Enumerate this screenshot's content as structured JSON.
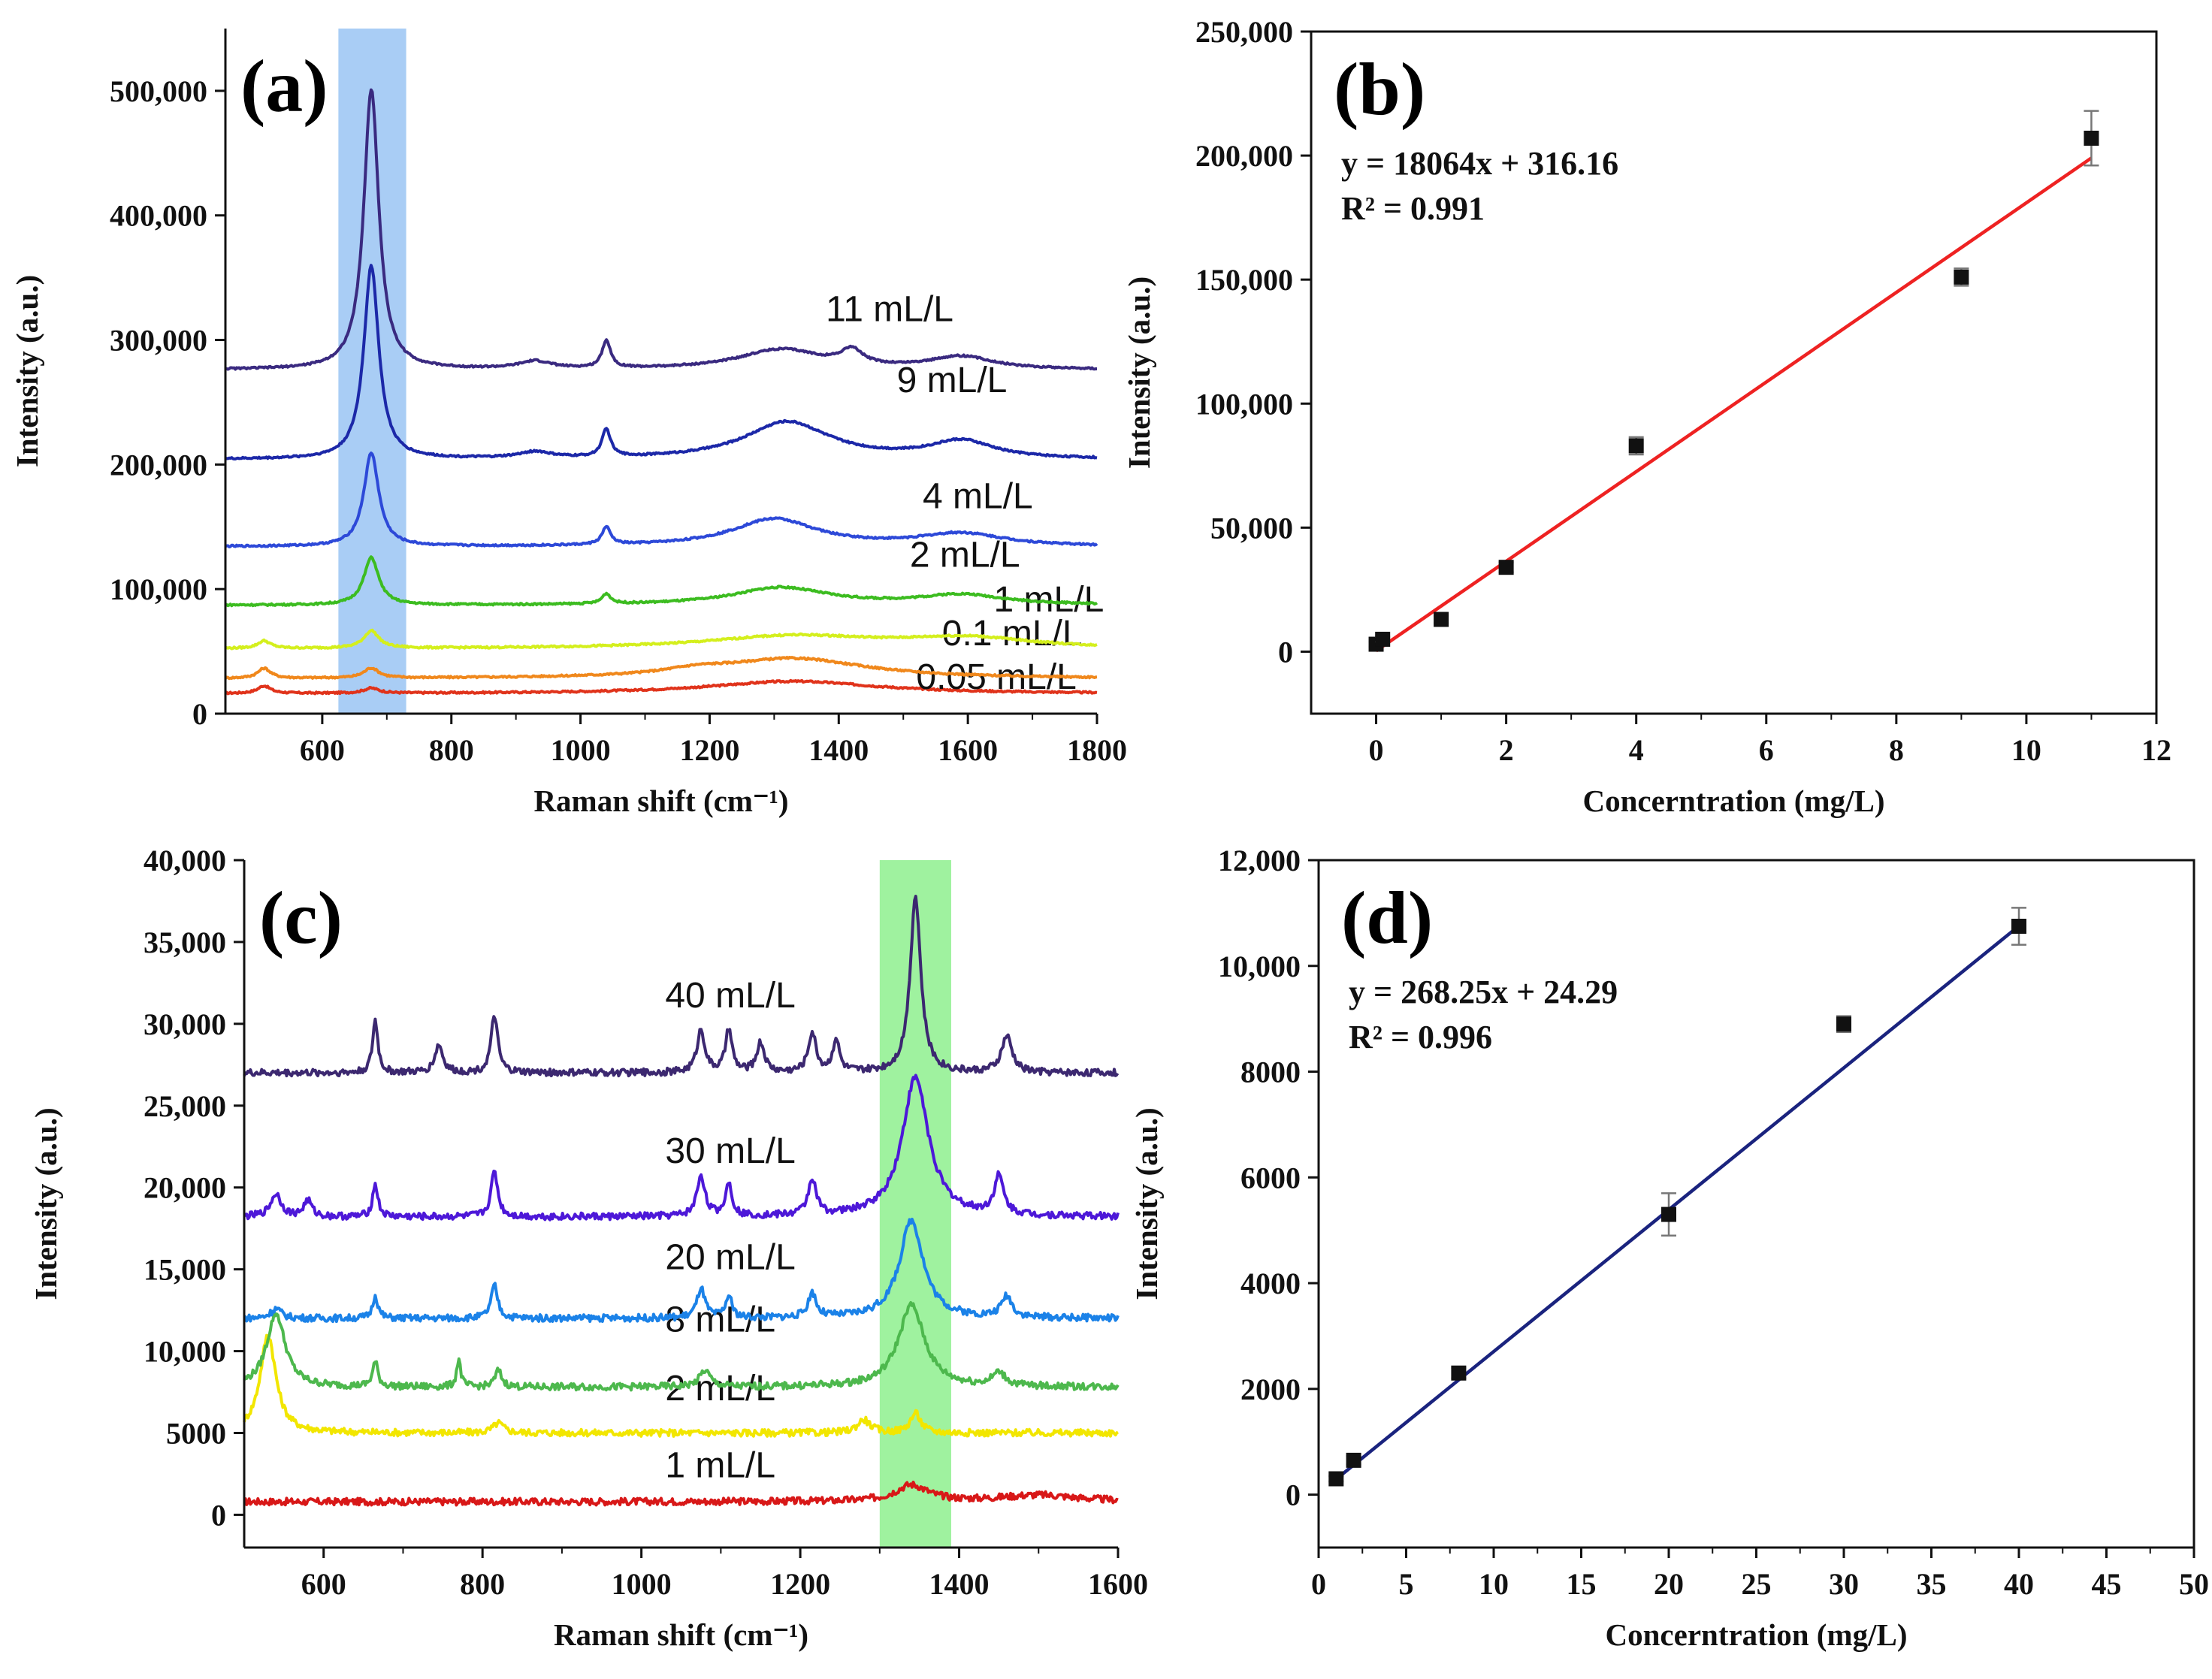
{
  "chart_data": [
    {
      "id": "a",
      "type": "line",
      "panel_label": "(a)",
      "xlabel": "Raman shift (cm⁻¹)",
      "ylabel": "Intensity (a.u.)",
      "xlim": [
        450,
        1800
      ],
      "ylim": [
        0,
        550000
      ],
      "xticks": [
        600,
        800,
        1000,
        1200,
        1400,
        1600,
        1800
      ],
      "xtick_labels": [
        "600",
        "800",
        "1000",
        "1200",
        "1400",
        "1600",
        "1800"
      ],
      "yticks": [
        0,
        100000,
        200000,
        300000,
        400000,
        500000
      ],
      "ytick_labels": [
        "0",
        "100,000",
        "200,000",
        "300,000",
        "400,000",
        "500,000"
      ],
      "highlight": {
        "from": 625,
        "to": 730,
        "color": "#a9cdf5"
      },
      "series": [
        {
          "name": "0.05 mL/L",
          "label": "0.05 mL/L",
          "color": "#e0331b",
          "baseline": 16000,
          "peaks": [
            [
              510,
              6000,
              12
            ],
            [
              676,
              4000,
              14
            ],
            [
              1330,
              10000,
              160
            ]
          ],
          "label_x": 1520,
          "label_y": 20000
        },
        {
          "name": "0.1 mL/L",
          "label": "0.1 mL/L",
          "color": "#f0881c",
          "baseline": 28000,
          "peaks": [
            [
              510,
              8000,
              12
            ],
            [
              676,
              8000,
              14
            ],
            [
              1180,
              4000,
              60
            ],
            [
              1330,
              16000,
              140
            ]
          ],
          "label_x": 1560,
          "label_y": 55000
        },
        {
          "name": "1 mL/L",
          "label": "1 mL/L",
          "color": "#d4ef1d",
          "baseline": 52000,
          "peaks": [
            [
              510,
              6000,
              12
            ],
            [
              676,
              14000,
              14
            ],
            [
              1330,
              10000,
              160
            ],
            [
              1600,
              8000,
              120
            ]
          ],
          "label_x": 1640,
          "label_y": 82000
        },
        {
          "name": "2 mL/L",
          "label": "2 mL/L",
          "color": "#3cbc20",
          "baseline": 87000,
          "peaks": [
            [
              676,
              38000,
              14
            ],
            [
              1040,
              8000,
              8
            ],
            [
              1310,
              14000,
              90
            ],
            [
              1590,
              8000,
              80
            ]
          ],
          "label_x": 1510,
          "label_y": 118000
        },
        {
          "name": "4 mL/L",
          "label": "4 mL/L",
          "color": "#2d49d8",
          "baseline": 134000,
          "peaks": [
            [
              676,
              75000,
              14
            ],
            [
              1040,
              14000,
              8
            ],
            [
              1300,
              22000,
              80
            ],
            [
              1590,
              10000,
              80
            ]
          ],
          "label_x": 1530,
          "label_y": 165000
        },
        {
          "name": "9 mL/L",
          "label": "9 mL/L",
          "color": "#1c28a8",
          "baseline": 204000,
          "peaks": [
            [
              676,
              155000,
              14
            ],
            [
              930,
              5000,
              30
            ],
            [
              1040,
              22000,
              8
            ],
            [
              1320,
              30000,
              80
            ],
            [
              1590,
              14000,
              60
            ]
          ],
          "label_x": 1490,
          "label_y": 258000
        },
        {
          "name": "11 mL/L",
          "label": "11 mL/L",
          "color": "#3a2a80",
          "baseline": 276000,
          "peaks": [
            [
              676,
              225000,
              14
            ],
            [
              930,
              6000,
              30
            ],
            [
              1040,
              22000,
              8
            ],
            [
              1310,
              16000,
              80
            ],
            [
              1420,
              12000,
              20
            ],
            [
              1590,
              10000,
              60
            ]
          ],
          "label_x": 1380,
          "label_y": 315000
        }
      ]
    },
    {
      "id": "b",
      "type": "scatter",
      "panel_label": "(b)",
      "xlabel": "Concerntration (mg/L)",
      "ylabel": "Intensity (a.u.)",
      "xlim": [
        -1,
        12
      ],
      "ylim": [
        -25000,
        250000
      ],
      "xticks": [
        0,
        2,
        4,
        6,
        8,
        10,
        12
      ],
      "xtick_labels": [
        "0",
        "2",
        "4",
        "6",
        "8",
        "10",
        "12"
      ],
      "yticks": [
        0,
        50000,
        100000,
        150000,
        200000,
        250000
      ],
      "ytick_labels": [
        "0",
        "50,000",
        "100,000",
        "150,000",
        "200,000",
        "250,000"
      ],
      "x": [
        0,
        0.1,
        1,
        2,
        4,
        9,
        11
      ],
      "y": [
        3000,
        5000,
        13000,
        34000,
        83000,
        151000,
        207000
      ],
      "err": [
        1000,
        1000,
        1500,
        2000,
        3500,
        3500,
        11000
      ],
      "fit": {
        "slope": 18064,
        "intercept": 316.16,
        "x_range": [
          0,
          11
        ],
        "color": "#ee2222"
      },
      "equation": "y = 18064x + 316.16",
      "r2": "R² = 0.991"
    },
    {
      "id": "c",
      "type": "line",
      "panel_label": "(c)",
      "xlabel": "Raman shift (cm⁻¹)",
      "ylabel": "Intensity (a.u.)",
      "xlim": [
        500,
        1600
      ],
      "ylim": [
        -2000,
        40000
      ],
      "xticks": [
        600,
        800,
        1000,
        1200,
        1400,
        1600
      ],
      "xtick_labels": [
        "600",
        "800",
        "1000",
        "1200",
        "1400",
        "1600"
      ],
      "yticks": [
        0,
        5000,
        10000,
        15000,
        20000,
        25000,
        30000,
        35000,
        40000
      ],
      "ytick_labels": [
        "0",
        "5000",
        "10,000",
        "15,000",
        "20,000",
        "25,000",
        "30,000",
        "35,000",
        "40,000"
      ],
      "highlight": {
        "from": 1300,
        "to": 1390,
        "color": "#9ff29f"
      },
      "series": [
        {
          "name": "1 mL/L",
          "label": "1 mL/L",
          "color": "#d81818",
          "baseline": 800,
          "peaks": [
            [
              1340,
              1000,
              25
            ],
            [
              1500,
              400,
              60
            ]
          ],
          "label_x": 1030,
          "label_y": 2300
        },
        {
          "name": "2 mL/L",
          "label": "2 mL/L",
          "color": "#f2e600",
          "baseline": 5000,
          "peaks": [
            [
              530,
              6000,
              12
            ],
            [
              820,
              600,
              8
            ],
            [
              1280,
              800,
              10
            ],
            [
              1345,
              1200,
              8
            ]
          ],
          "label_x": 1030,
          "label_y": 7000
        },
        {
          "name": "8 mL/L",
          "label": "8 mL/L",
          "color": "#4db84d",
          "baseline": 7800,
          "peaks": [
            [
              540,
              4500,
              14
            ],
            [
              665,
              1500,
              4
            ],
            [
              770,
              1700,
              3
            ],
            [
              820,
              1000,
              5
            ],
            [
              1080,
              1000,
              8
            ],
            [
              1340,
              5000,
              20
            ],
            [
              1450,
              800,
              10
            ]
          ],
          "label_x": 1030,
          "label_y": 11200
        },
        {
          "name": "20 mL/L",
          "label": "20 mL/L",
          "color": "#1b82e8",
          "baseline": 12000,
          "peaks": [
            [
              540,
              600,
              8
            ],
            [
              665,
              1400,
              4
            ],
            [
              815,
              2000,
              5
            ],
            [
              1075,
              1800,
              6
            ],
            [
              1110,
              1300,
              5
            ],
            [
              1215,
              1500,
              6
            ],
            [
              1340,
              6000,
              18
            ],
            [
              1460,
              1300,
              8
            ]
          ],
          "label_x": 1030,
          "label_y": 15000
        },
        {
          "name": "30 mL/L",
          "label": "30 mL/L",
          "color": "#4d18d8",
          "baseline": 18200,
          "peaks": [
            [
              540,
              1400,
              8
            ],
            [
              580,
              1000,
              6
            ],
            [
              665,
              2000,
              4
            ],
            [
              815,
              2800,
              5
            ],
            [
              1075,
              2500,
              6
            ],
            [
              1110,
              2000,
              5
            ],
            [
              1215,
              2200,
              6
            ],
            [
              1345,
              8500,
              20
            ],
            [
              1450,
              2300,
              7
            ]
          ],
          "label_x": 1030,
          "label_y": 21500
        },
        {
          "name": "40 mL/L",
          "label": "40 mL/L",
          "color": "#3c2870",
          "baseline": 27000,
          "peaks": [
            [
              665,
              3200,
              4
            ],
            [
              745,
              1700,
              6
            ],
            [
              815,
              3500,
              5
            ],
            [
              1075,
              2600,
              6
            ],
            [
              1110,
              2600,
              5
            ],
            [
              1150,
              1800,
              6
            ],
            [
              1215,
              2400,
              6
            ],
            [
              1245,
              2000,
              5
            ],
            [
              1345,
              10800,
              8
            ],
            [
              1460,
              2200,
              8
            ]
          ],
          "label_x": 1030,
          "label_y": 31000
        }
      ]
    },
    {
      "id": "d",
      "type": "scatter",
      "panel_label": "(d)",
      "xlabel": "Concerntration (mg/L)",
      "ylabel": "Intensity (a.u.)",
      "xlim": [
        0,
        50
      ],
      "ylim": [
        -1000,
        12000
      ],
      "xticks": [
        0,
        5,
        10,
        15,
        20,
        25,
        30,
        35,
        40,
        45,
        50
      ],
      "xtick_labels": [
        "0",
        "5",
        "10",
        "15",
        "20",
        "25",
        "30",
        "35",
        "40",
        "45",
        "50"
      ],
      "yticks": [
        0,
        2000,
        4000,
        6000,
        8000,
        10000,
        12000
      ],
      "ytick_labels": [
        "0",
        "2000",
        "4000",
        "6000",
        "8000",
        "10,000",
        "12,000"
      ],
      "x": [
        1,
        2,
        8,
        20,
        30,
        40
      ],
      "y": [
        300,
        650,
        2300,
        5300,
        8900,
        10750
      ],
      "err": [
        50,
        80,
        100,
        400,
        150,
        350
      ],
      "fit": {
        "slope": 268.25,
        "intercept": 24.29,
        "x_range": [
          1,
          40
        ],
        "color": "#1a237e"
      },
      "equation": "y = 268.25x + 24.29",
      "r2": "R² = 0.996"
    }
  ]
}
